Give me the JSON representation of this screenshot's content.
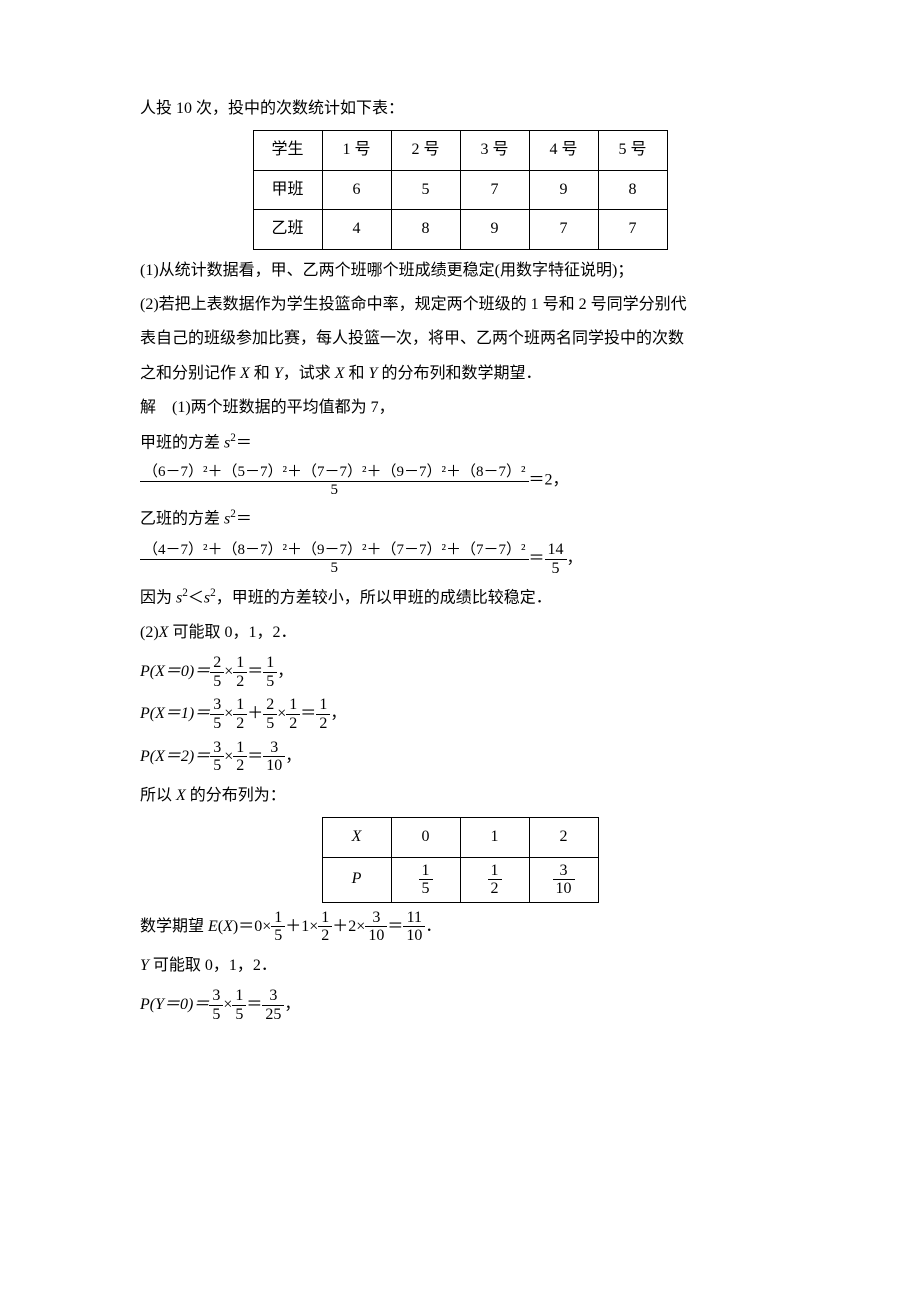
{
  "intro": "人投 10 次，投中的次数统计如下表：",
  "table1": {
    "header": [
      "学生",
      "1 号",
      "2 号",
      "3 号",
      "4 号",
      "5 号"
    ],
    "rows": [
      [
        "甲班",
        "6",
        "5",
        "7",
        "9",
        "8"
      ],
      [
        "乙班",
        "4",
        "8",
        "9",
        "7",
        "7"
      ]
    ]
  },
  "q1": "(1)从统计数据看，甲、乙两个班哪个班成绩更稳定(用数字特征说明)；",
  "q2a": "(2)若把上表数据作为学生投篮命中率，规定两个班级的 1 号和 2 号同学分别代",
  "q2b": "表自己的班级参加比赛，每人投篮一次，将甲、乙两个班两名同学投中的次数",
  "q2c_prefix": "之和分别记作 ",
  "q2c_mid": " 和 ",
  "q2c_mid2": "，试求 ",
  "q2c_mid3": " 和 ",
  "q2c_suffix": " 的分布列和数学期望．",
  "sol1_a": "解　(1)两个班数据的平均值都为 7，",
  "sol1_jia_label_pre": "甲班的方差 ",
  "sol1_s2eq": "＝",
  "var_jia_num": "（6－7）²＋（5－7）²＋（7－7）²＋（9－7）²＋（8－7）²",
  "var_den": "5",
  "var_jia_result": "＝2，",
  "sol1_yi_label_pre": "乙班的方差 ",
  "var_yi_num": "（4－7）²＋（8－7）²＋（9－7）²＋（7－7）²＋（7－7）²",
  "var_yi_result_pre": "＝",
  "var_yi_result_num": "14",
  "var_yi_result_den": "5",
  "var_yi_tail": "，",
  "compare_pre": "因为 ",
  "compare_mid": "＜",
  "compare_suffix": "，甲班的方差较小，所以甲班的成绩比较稳定．",
  "sol2_a_pre": "(2)",
  "sol2_a_suf": " 可能取 0，1，2．",
  "px0_lhs": "P(X＝0)＝",
  "px1_lhs": "P(X＝1)＝",
  "px2_lhs": "P(X＝2)＝",
  "times": "×",
  "plus": "＋",
  "eq": "＝",
  "comma": "，",
  "period": "．",
  "f_2_5_n": "2",
  "f_2_5_d": "5",
  "f_1_2_n": "1",
  "f_1_2_d": "2",
  "f_1_5_n": "1",
  "f_1_5_d": "5",
  "f_3_5_n": "3",
  "f_3_5_d": "5",
  "f_3_10_n": "3",
  "f_3_10_d": "10",
  "f_11_10_n": "11",
  "f_11_10_d": "10",
  "f_3_25_n": "3",
  "f_3_25_d": "25",
  "dist_label_pre": "所以 ",
  "dist_label_suf": " 的分布列为：",
  "table2": {
    "r1": [
      "X",
      "0",
      "1",
      "2"
    ],
    "r2_first": "P",
    "r2_fracs": [
      {
        "n": "1",
        "d": "5"
      },
      {
        "n": "1",
        "d": "2"
      },
      {
        "n": "3",
        "d": "10"
      }
    ]
  },
  "ex_label_pre": "数学期望 ",
  "ex_expr_pre": "＝0×",
  "ex_expr_p1": "＋1×",
  "ex_expr_p2": "＋2×",
  "y_possible_pre": "",
  "y_possible_suf": " 可能取 0，1，2．",
  "py0_lhs": "P(Y＝0)＝",
  "s_var": "s",
  "two_sup": "2",
  "X": "X",
  "Y": "Y",
  "E": "E",
  "open_paren": "(",
  "close_paren": ")"
}
